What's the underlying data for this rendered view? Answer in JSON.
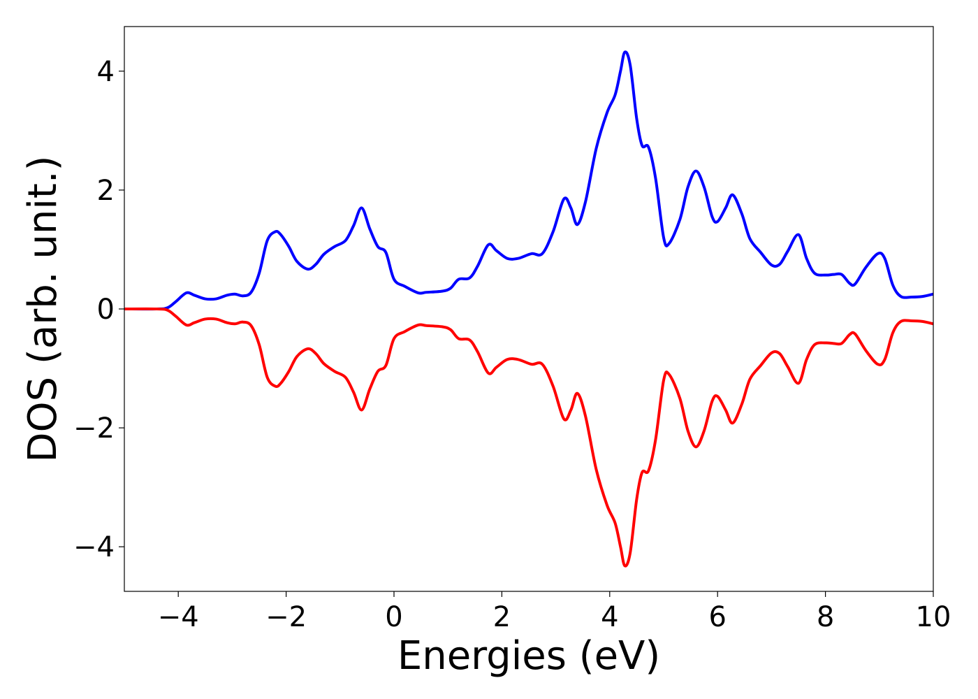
{
  "chart_data": {
    "type": "line",
    "xlabel": "Energies (eV)",
    "ylabel": "DOS (arb. unit.)",
    "xlim": [
      -5,
      10
    ],
    "ylim": [
      -4.75,
      4.75
    ],
    "xticks": [
      -4,
      -2,
      0,
      2,
      4,
      6,
      8,
      10
    ],
    "xtick_labels": [
      "−4",
      "−2",
      "0",
      "2",
      "4",
      "6",
      "8",
      "10"
    ],
    "yticks": [
      -4,
      -2,
      0,
      2,
      4
    ],
    "ytick_labels": [
      "−4",
      "−2",
      "0",
      "2",
      "4"
    ],
    "grid": false,
    "series": [
      {
        "color": "#0000ff",
        "x": [
          -5.0,
          -4.4,
          -4.2,
          -4.05,
          -3.85,
          -3.7,
          -3.5,
          -3.3,
          -3.1,
          -2.95,
          -2.8,
          -2.65,
          -2.5,
          -2.35,
          -2.2,
          -2.1,
          -1.95,
          -1.8,
          -1.6,
          -1.45,
          -1.3,
          -1.1,
          -0.9,
          -0.75,
          -0.6,
          -0.45,
          -0.3,
          -0.15,
          0.0,
          0.2,
          0.45,
          0.6,
          0.9,
          1.05,
          1.2,
          1.4,
          1.55,
          1.75,
          1.9,
          2.1,
          2.3,
          2.55,
          2.75,
          2.95,
          3.15,
          3.28,
          3.4,
          3.55,
          3.75,
          3.95,
          4.1,
          4.2,
          4.28,
          4.38,
          4.5,
          4.6,
          4.72,
          4.85,
          5.0,
          5.1,
          5.3,
          5.45,
          5.6,
          5.75,
          5.9,
          6.0,
          6.15,
          6.28,
          6.45,
          6.6,
          6.8,
          7.0,
          7.15,
          7.3,
          7.5,
          7.65,
          7.8,
          8.0,
          8.15,
          8.3,
          8.45,
          8.55,
          8.75,
          8.97,
          9.1,
          9.25,
          9.4,
          9.6,
          9.8,
          10.0
        ],
        "values": [
          0.0,
          0.0,
          0.02,
          0.12,
          0.27,
          0.23,
          0.17,
          0.17,
          0.23,
          0.25,
          0.22,
          0.28,
          0.6,
          1.15,
          1.3,
          1.25,
          1.05,
          0.8,
          0.67,
          0.75,
          0.92,
          1.05,
          1.15,
          1.4,
          1.7,
          1.35,
          1.05,
          0.95,
          0.5,
          0.38,
          0.27,
          0.28,
          0.3,
          0.35,
          0.5,
          0.52,
          0.72,
          1.08,
          0.98,
          0.85,
          0.85,
          0.93,
          0.93,
          1.3,
          1.85,
          1.7,
          1.42,
          1.8,
          2.7,
          3.3,
          3.6,
          4.0,
          4.32,
          4.1,
          3.2,
          2.75,
          2.72,
          2.2,
          1.2,
          1.1,
          1.5,
          2.05,
          2.32,
          2.05,
          1.55,
          1.47,
          1.7,
          1.92,
          1.6,
          1.18,
          0.95,
          0.74,
          0.75,
          0.97,
          1.25,
          0.85,
          0.6,
          0.57,
          0.58,
          0.58,
          0.43,
          0.42,
          0.7,
          0.93,
          0.85,
          0.4,
          0.21,
          0.2,
          0.21,
          0.25
        ]
      },
      {
        "color": "#ff0000",
        "x": [
          -5.0,
          -4.4,
          -4.2,
          -4.05,
          -3.85,
          -3.7,
          -3.5,
          -3.3,
          -3.1,
          -2.95,
          -2.8,
          -2.65,
          -2.5,
          -2.35,
          -2.2,
          -2.1,
          -1.95,
          -1.8,
          -1.6,
          -1.45,
          -1.3,
          -1.1,
          -0.9,
          -0.75,
          -0.6,
          -0.45,
          -0.3,
          -0.15,
          0.0,
          0.2,
          0.45,
          0.6,
          0.9,
          1.05,
          1.2,
          1.4,
          1.55,
          1.75,
          1.9,
          2.1,
          2.3,
          2.55,
          2.75,
          2.95,
          3.15,
          3.28,
          3.4,
          3.55,
          3.75,
          3.95,
          4.1,
          4.2,
          4.28,
          4.38,
          4.5,
          4.6,
          4.72,
          4.85,
          5.0,
          5.1,
          5.3,
          5.45,
          5.6,
          5.75,
          5.9,
          6.0,
          6.15,
          6.28,
          6.45,
          6.6,
          6.8,
          7.0,
          7.15,
          7.3,
          7.5,
          7.65,
          7.8,
          8.0,
          8.15,
          8.3,
          8.45,
          8.55,
          8.75,
          8.97,
          9.1,
          9.25,
          9.4,
          9.6,
          9.8,
          10.0
        ],
        "values": [
          0.0,
          0.0,
          -0.02,
          -0.12,
          -0.27,
          -0.23,
          -0.17,
          -0.17,
          -0.23,
          -0.25,
          -0.22,
          -0.28,
          -0.6,
          -1.15,
          -1.3,
          -1.25,
          -1.05,
          -0.8,
          -0.67,
          -0.75,
          -0.92,
          -1.05,
          -1.15,
          -1.4,
          -1.7,
          -1.35,
          -1.05,
          -0.95,
          -0.5,
          -0.38,
          -0.27,
          -0.28,
          -0.3,
          -0.35,
          -0.5,
          -0.52,
          -0.72,
          -1.08,
          -0.98,
          -0.85,
          -0.85,
          -0.93,
          -0.93,
          -1.3,
          -1.85,
          -1.7,
          -1.42,
          -1.8,
          -2.7,
          -3.3,
          -3.6,
          -4.0,
          -4.32,
          -4.1,
          -3.2,
          -2.75,
          -2.72,
          -2.2,
          -1.2,
          -1.1,
          -1.5,
          -2.05,
          -2.32,
          -2.05,
          -1.55,
          -1.47,
          -1.7,
          -1.92,
          -1.6,
          -1.18,
          -0.95,
          -0.74,
          -0.75,
          -0.97,
          -1.25,
          -0.85,
          -0.6,
          -0.57,
          -0.58,
          -0.58,
          -0.43,
          -0.42,
          -0.7,
          -0.93,
          -0.85,
          -0.4,
          -0.21,
          -0.2,
          -0.21,
          -0.25
        ]
      }
    ]
  }
}
